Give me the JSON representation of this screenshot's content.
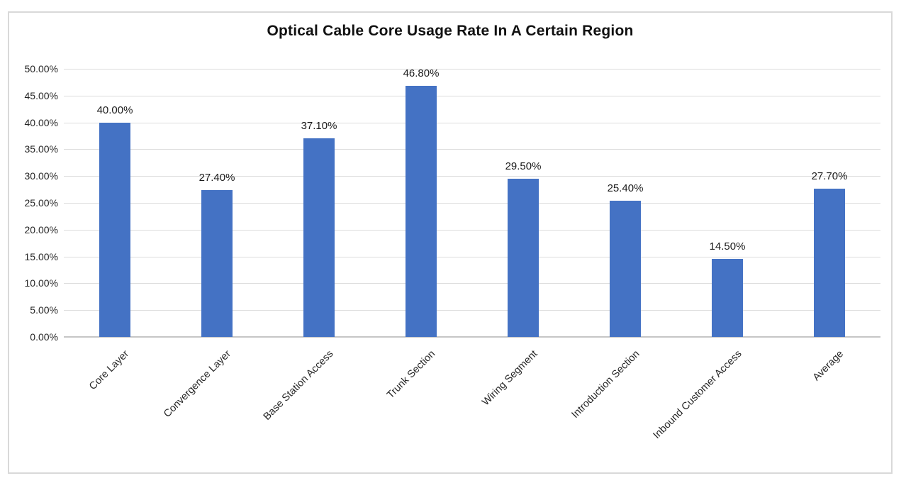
{
  "chart": {
    "title": "Optical Cable Core Usage Rate In A Certain Region"
  },
  "chart_data": {
    "type": "bar",
    "title": "Optical Cable Core Usage Rate In A Certain Region",
    "categories": [
      "Core Layer",
      "Convergence Layer",
      "Base Station Access",
      "Trunk Section",
      "Wiring Segment",
      "Introduction Section",
      "Inbound Customer Access",
      "Average"
    ],
    "values": [
      40.0,
      27.4,
      37.1,
      46.8,
      29.5,
      25.4,
      14.5,
      27.7
    ],
    "value_labels": [
      "40.00%",
      "27.40%",
      "37.10%",
      "46.80%",
      "29.50%",
      "25.40%",
      "14.50%",
      "27.70%"
    ],
    "xlabel": "",
    "ylabel": "",
    "ylim": [
      0,
      50
    ],
    "ytick_step": 5,
    "ytick_labels": [
      "0.00%",
      "5.00%",
      "10.00%",
      "15.00%",
      "20.00%",
      "25.00%",
      "30.00%",
      "35.00%",
      "40.00%",
      "45.00%",
      "50.00%"
    ],
    "grid": true,
    "legend": false,
    "bar_color": "#4472C4",
    "gridline_color": "#dcdcdc",
    "axis_line_color": "#c6c6c6",
    "text_color": "#262626"
  }
}
